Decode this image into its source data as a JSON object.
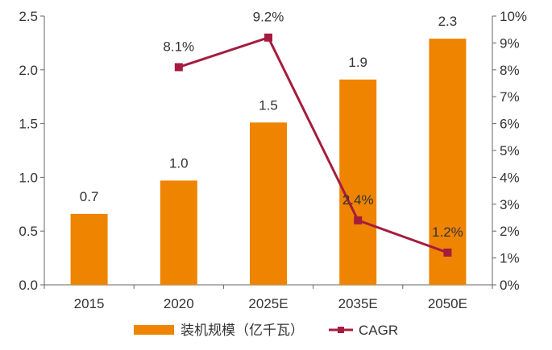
{
  "chart_data": {
    "type": "bar",
    "categories": [
      "2015",
      "2020",
      "2025E",
      "2035E",
      "2050E"
    ],
    "series": [
      {
        "name": "装机规模（亿千瓦）",
        "type": "bar",
        "axis": "left",
        "values": [
          0.66,
          0.97,
          1.51,
          1.91,
          2.29
        ],
        "labels": [
          "0.7",
          "1.0",
          "1.5",
          "1.9",
          "2.3"
        ],
        "color": "#EE8400"
      },
      {
        "name": "CAGR",
        "type": "line",
        "axis": "right",
        "values": [
          null,
          8.1,
          9.2,
          2.4,
          1.2
        ],
        "labels": [
          "",
          "8.1%",
          "9.2%",
          "2.4%",
          "1.2%"
        ],
        "color": "#A51C3F"
      }
    ],
    "y_left": {
      "min": 0,
      "max": 2.5,
      "ticks": [
        "0.0",
        "0.5",
        "1.0",
        "1.5",
        "2.0",
        "2.5"
      ]
    },
    "y_right": {
      "min": 0,
      "max": 10,
      "ticks": [
        "0%",
        "1%",
        "2%",
        "3%",
        "4%",
        "5%",
        "6%",
        "7%",
        "8%",
        "9%",
        "10%"
      ]
    },
    "grid": false,
    "legend": "bottom"
  }
}
